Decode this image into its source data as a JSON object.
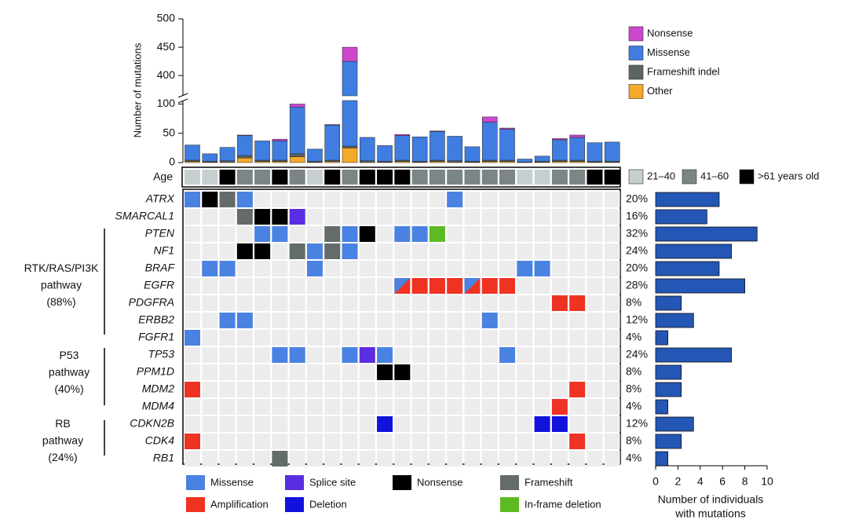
{
  "chart_data": [
    {
      "type": "bar",
      "stacked": true,
      "ylabel": "Number of mutations",
      "ylim": [
        0,
        500
      ],
      "ybreak": [
        110,
        360
      ],
      "yticks": [
        0,
        50,
        100,
        400,
        450,
        500
      ],
      "series": [
        {
          "name": "Other",
          "color": "#f4a92a",
          "values": [
            2,
            1,
            1,
            8,
            2,
            2,
            10,
            1,
            2,
            25,
            1,
            1,
            2,
            1,
            2,
            1,
            1,
            2,
            2,
            0,
            1,
            2,
            2,
            1,
            1
          ]
        },
        {
          "name": "Frameshift indel",
          "color": "#5d6466",
          "values": [
            2,
            1,
            2,
            4,
            2,
            2,
            5,
            1,
            2,
            3,
            2,
            1,
            2,
            1,
            2,
            2,
            1,
            2,
            2,
            1,
            1,
            2,
            2,
            1,
            1
          ]
        },
        {
          "name": "Missense",
          "color": "#3f7de0",
          "values": [
            26,
            13,
            23,
            34,
            33,
            33,
            80,
            21,
            60,
            397,
            40,
            27,
            42,
            42,
            49,
            42,
            25,
            65,
            53,
            5,
            9,
            35,
            39,
            32,
            33
          ]
        },
        {
          "name": "Nonsense",
          "color": "#cc47cc",
          "values": [
            0,
            0,
            0,
            1,
            0,
            3,
            5,
            0,
            1,
            25,
            0,
            0,
            2,
            0,
            1,
            0,
            0,
            9,
            2,
            0,
            0,
            2,
            4,
            0,
            0
          ]
        }
      ]
    },
    {
      "type": "oncoprint",
      "row_label": "Age",
      "age_groups": [
        {
          "label": "21–40",
          "color": "#c5cfcf"
        },
        {
          "label": "41–60",
          "color": "#7b8585"
        },
        {
          "label": ">61 years old",
          "color": "#000000"
        }
      ],
      "age": [
        0,
        0,
        2,
        1,
        1,
        2,
        1,
        0,
        2,
        1,
        2,
        2,
        2,
        1,
        1,
        1,
        1,
        1,
        1,
        0,
        0,
        1,
        1,
        2,
        2
      ],
      "genes": [
        "ATRX",
        "SMARCAL1",
        "PTEN",
        "NF1",
        "BRAF",
        "EGFR",
        "PDGFRA",
        "ERBB2",
        "FGFR1",
        "TP53",
        "PPM1D",
        "MDM2",
        "MDM4",
        "CDKN2B",
        "CDK4",
        "RB1"
      ],
      "alterations": [
        {
          "name": "Missense",
          "color": "#4a82e2"
        },
        {
          "name": "Splice site",
          "color": "#5a2ee0"
        },
        {
          "name": "Nonsense",
          "color": "#000000"
        },
        {
          "name": "Frameshift",
          "color": "#636b6b"
        },
        {
          "name": "Amplification",
          "color": "#ee3322"
        },
        {
          "name": "Deletion",
          "color": "#1212dd"
        },
        {
          "name": "In-frame deletion",
          "color": "#5cbb22"
        }
      ],
      "cells": [
        [
          0,
          2,
          3,
          0,
          null,
          null,
          null,
          null,
          null,
          null,
          null,
          null,
          null,
          null,
          null,
          0,
          null,
          null,
          null,
          null,
          null,
          null,
          null,
          null,
          null
        ],
        [
          null,
          null,
          null,
          3,
          2,
          2,
          1,
          null,
          null,
          null,
          null,
          null,
          null,
          null,
          null,
          null,
          null,
          null,
          null,
          null,
          null,
          null,
          null,
          null,
          null
        ],
        [
          null,
          null,
          null,
          null,
          0,
          0,
          null,
          null,
          3,
          0,
          2,
          null,
          0,
          0,
          6,
          null,
          null,
          null,
          null,
          null,
          null,
          null,
          null,
          null,
          null
        ],
        [
          null,
          null,
          null,
          2,
          2,
          null,
          3,
          0,
          3,
          0,
          null,
          null,
          null,
          null,
          null,
          null,
          null,
          null,
          null,
          null,
          null,
          null,
          null,
          null,
          null
        ],
        [
          null,
          0,
          0,
          null,
          null,
          null,
          null,
          0,
          null,
          null,
          null,
          null,
          null,
          null,
          null,
          null,
          null,
          null,
          null,
          0,
          0,
          null,
          null,
          null,
          null
        ],
        [
          null,
          null,
          null,
          null,
          null,
          null,
          null,
          null,
          null,
          null,
          null,
          null,
          [
            4,
            0
          ],
          4,
          4,
          4,
          [
            4,
            0
          ],
          4,
          4,
          null,
          null,
          null,
          null,
          null,
          null
        ],
        [
          null,
          null,
          null,
          null,
          null,
          null,
          null,
          null,
          null,
          null,
          null,
          null,
          null,
          null,
          null,
          null,
          null,
          null,
          null,
          null,
          null,
          4,
          4,
          null,
          null
        ],
        [
          null,
          null,
          0,
          0,
          null,
          null,
          null,
          null,
          null,
          null,
          null,
          null,
          null,
          null,
          null,
          null,
          null,
          0,
          null,
          null,
          null,
          null,
          null,
          null,
          null
        ],
        [
          0,
          null,
          null,
          null,
          null,
          null,
          null,
          null,
          null,
          null,
          null,
          null,
          null,
          null,
          null,
          null,
          null,
          null,
          null,
          null,
          null,
          null,
          null,
          null,
          null
        ],
        [
          null,
          null,
          null,
          null,
          null,
          0,
          0,
          null,
          null,
          0,
          1,
          0,
          null,
          null,
          null,
          null,
          null,
          null,
          0,
          null,
          null,
          null,
          null,
          null,
          null
        ],
        [
          null,
          null,
          null,
          null,
          null,
          null,
          null,
          null,
          null,
          null,
          null,
          2,
          2,
          null,
          null,
          null,
          null,
          null,
          null,
          null,
          null,
          null,
          null,
          null,
          null
        ],
        [
          4,
          null,
          null,
          null,
          null,
          null,
          null,
          null,
          null,
          null,
          null,
          null,
          null,
          null,
          null,
          null,
          null,
          null,
          null,
          null,
          null,
          null,
          4,
          null,
          null
        ],
        [
          null,
          null,
          null,
          null,
          null,
          null,
          null,
          null,
          null,
          null,
          null,
          null,
          null,
          null,
          null,
          null,
          null,
          null,
          null,
          null,
          null,
          4,
          null,
          null,
          null
        ],
        [
          null,
          null,
          null,
          null,
          null,
          null,
          null,
          null,
          null,
          null,
          null,
          5,
          null,
          null,
          null,
          null,
          null,
          null,
          null,
          null,
          5,
          5,
          null,
          null,
          null
        ],
        [
          4,
          null,
          null,
          null,
          null,
          null,
          null,
          null,
          null,
          null,
          null,
          null,
          null,
          null,
          null,
          null,
          null,
          null,
          null,
          null,
          null,
          null,
          4,
          null,
          null
        ],
        [
          null,
          null,
          null,
          null,
          null,
          3,
          null,
          null,
          null,
          null,
          null,
          null,
          null,
          null,
          null,
          null,
          null,
          null,
          null,
          null,
          null,
          null,
          null,
          null,
          null
        ]
      ],
      "pathways": [
        {
          "lines": [
            "RTK/RAS/PI3K",
            "pathway",
            "(88%)"
          ]
        },
        {
          "lines": [
            "P53",
            "pathway",
            "(40%)"
          ]
        },
        {
          "lines": [
            "RB",
            "pathway",
            "(24%)"
          ]
        }
      ]
    },
    {
      "type": "hbar",
      "color": "#2457b5",
      "values": [
        5.7,
        4.6,
        9.1,
        6.8,
        5.7,
        8.0,
        2.3,
        3.4,
        1.1,
        6.8,
        2.3,
        2.3,
        1.1,
        3.4,
        2.3,
        1.1
      ],
      "percent_labels": [
        "20%",
        "16%",
        "32%",
        "24%",
        "20%",
        "28%",
        "8%",
        "12%",
        "4%",
        "24%",
        "8%",
        "8%",
        "4%",
        "12%",
        "8%",
        "4%"
      ],
      "xlim": [
        0,
        10
      ],
      "xticks": [
        0,
        2,
        4,
        6,
        8,
        10
      ],
      "xlabel": [
        "Number of individuals",
        "with mutations"
      ]
    }
  ]
}
